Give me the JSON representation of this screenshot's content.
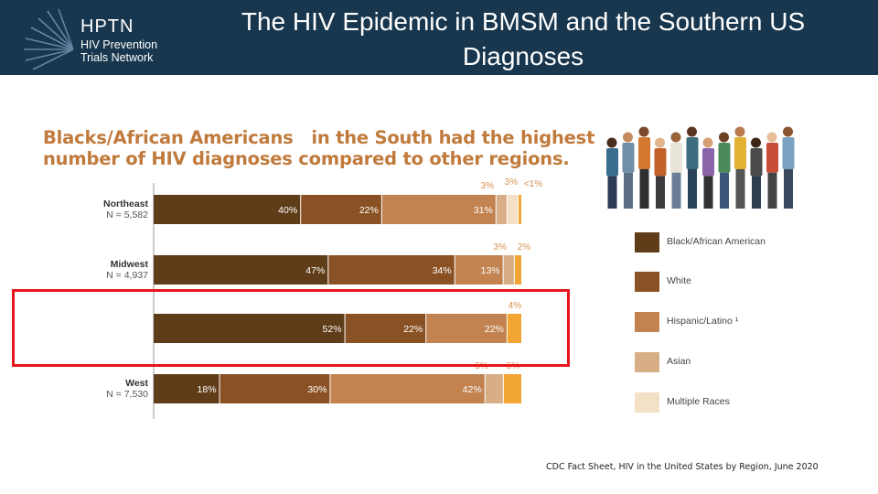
{
  "header": {
    "logo_name": "HPTN",
    "logo_sub_line1": "HIV Prevention",
    "logo_sub_line2": "Trials Network",
    "title": "The HIV Epidemic in BMSM and the Southern US Diagnoses"
  },
  "colors": {
    "header_bg": "#18374e",
    "highlight": "#e8161c",
    "title_orange": "#c07a3c"
  },
  "chart_data": {
    "type": "bar",
    "orientation": "horizontal-stacked-100",
    "title": "Blacks/African Americans in the South had the highest number of HIV diagnoses compared to other regions.",
    "title_line1": "Blacks/African Americans   in the South had the highest",
    "title_line2": "number of HIV diagnoses compared to other regions.",
    "xlim": [
      0,
      100
    ],
    "series": [
      {
        "name": "Black/African American",
        "color": "#5f3d18"
      },
      {
        "name": "White",
        "color": "#8a5224"
      },
      {
        "name": "Hispanic/Latino",
        "color": "#c28350"
      },
      {
        "name": "Asian",
        "color": "#d8ae87"
      },
      {
        "name": "Multiple Races",
        "color": "#f3e0c6"
      }
    ],
    "regions": [
      {
        "name": "Northeast",
        "n": "N = 5,582",
        "values": [
          40,
          22,
          31,
          3,
          3,
          1
        ],
        "labels": [
          "40%",
          "22%",
          "31%",
          "3%",
          "3%",
          "<1%"
        ]
      },
      {
        "name": "Midwest",
        "n": "N = 4,937",
        "values": [
          47,
          34,
          13,
          3,
          0,
          2
        ],
        "labels": [
          "47%",
          "34%",
          "13%",
          "3%",
          "",
          "2%"
        ]
      },
      {
        "name": "",
        "n": "",
        "values": [
          52,
          22,
          22,
          0,
          0,
          4
        ],
        "labels": [
          "52%",
          "22%",
          "22%",
          "",
          "",
          "4%"
        ]
      },
      {
        "name": "West",
        "n": "N = 7,530",
        "values": [
          18,
          30,
          42,
          5,
          0,
          5
        ],
        "labels": [
          "18%",
          "30%",
          "42%",
          "5%",
          "",
          "5%"
        ]
      }
    ],
    "extra_segment_color": "#f3a533"
  },
  "legend": {
    "items": [
      {
        "label": "Black/African American",
        "color": "#5f3d18"
      },
      {
        "label": "White",
        "color": "#8a5224"
      },
      {
        "label": "Hispanic/Latino ¹",
        "color": "#c28350"
      },
      {
        "label": "Asian",
        "color": "#d8ae87"
      },
      {
        "label": "Multiple Races",
        "color": "#f3e0c6"
      }
    ]
  },
  "source": "CDC Fact Sheet, HIV in the United States by Region, June 2020"
}
